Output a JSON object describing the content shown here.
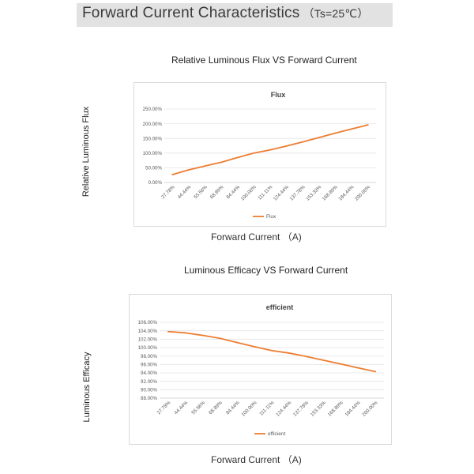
{
  "page": {
    "title": "Forward Current Characteristics",
    "condition": "（Ts=25℃）"
  },
  "chart_data": [
    {
      "type": "line",
      "title": "Relative Luminous Flux VS Forward Current",
      "inner_title": "Flux",
      "xlabel": "Forward Current （A)",
      "ylabel": "Relative Luminous Flux",
      "categories": [
        "27.78%",
        "44.44%",
        "55.56%",
        "68.89%",
        "84.44%",
        "100.00%",
        "111.11%",
        "124.44%",
        "137.78%",
        "153.33%",
        "168.89%",
        "184.44%",
        "200.00%"
      ],
      "yticks": [
        "0.00%",
        "50.00%",
        "100.00%",
        "150.00%",
        "200.00%",
        "250.00%"
      ],
      "ylim": [
        0,
        250
      ],
      "grid": true,
      "legend_position": "bottom",
      "color": "#ed7d31",
      "series": [
        {
          "name": "Flux",
          "values": [
            27,
            43,
            56,
            69,
            85,
            100,
            111,
            124,
            138,
            153,
            168,
            182,
            196
          ]
        }
      ]
    },
    {
      "type": "line",
      "title": "Luminous Efficacy VS Forward Current",
      "inner_title": "efficient",
      "xlabel": "Forward Current （A)",
      "ylabel": "Luminous Efficacy",
      "categories": [
        "27.78%",
        "44.44%",
        "55.56%",
        "68.89%",
        "84.44%",
        "100.00%",
        "111.11%",
        "124.44%",
        "137.78%",
        "153.33%",
        "168.89%",
        "184.44%",
        "200.00%"
      ],
      "yticks": [
        "88.00%",
        "90.00%",
        "92.00%",
        "94.00%",
        "96.00%",
        "98.00%",
        "100.00%",
        "102.00%",
        "104.00%",
        "106.00%"
      ],
      "ylim": [
        88,
        106
      ],
      "grid": true,
      "legend_position": "bottom",
      "color": "#ed7d31",
      "series": [
        {
          "name": "efficient",
          "values": [
            103.8,
            103.5,
            102.9,
            102.2,
            101.2,
            100.2,
            99.3,
            98.7,
            97.9,
            97.0,
            96.1,
            95.2,
            94.3
          ]
        }
      ]
    }
  ]
}
